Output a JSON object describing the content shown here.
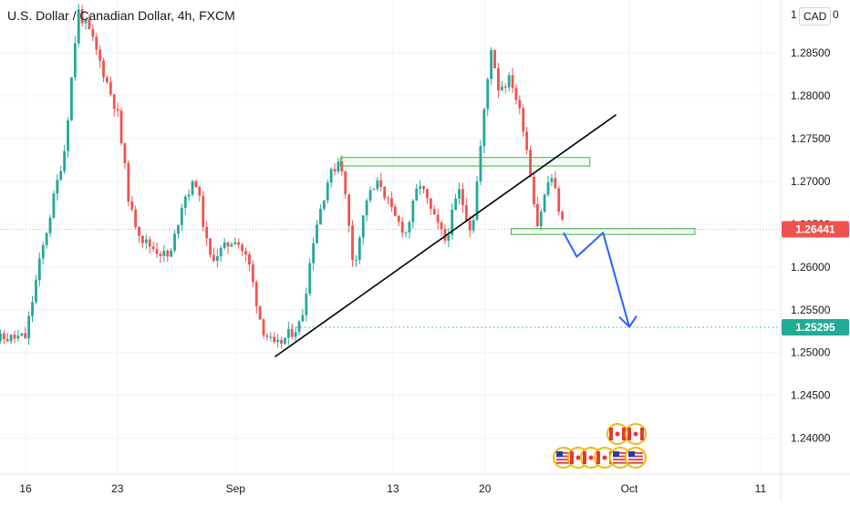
{
  "header": {
    "title": "U.S. Dollar / Canadian Dollar, 4h, FXCM",
    "currency": "CAD",
    "currency_suffix": "0",
    "top_tick_fragment": "1"
  },
  "colors": {
    "up": "#26a69a",
    "down": "#ef5350",
    "trendline": "#000000",
    "zone": "#4caf50",
    "projection": "#2962ff",
    "target_line": "#22ab94",
    "price_line": "#ef5350",
    "grid": "#f0f3fa",
    "axis_text": "#131722"
  },
  "chart_data": {
    "type": "candlestick",
    "symbol": "U.S. Dollar / Canadian Dollar",
    "interval": "4h",
    "source": "FXCM",
    "y_axis": {
      "ticks": [
        1.24,
        1.245,
        1.25,
        1.255,
        1.26,
        1.265,
        1.27,
        1.275,
        1.28,
        1.285
      ],
      "tick_labels": [
        "1.24000",
        "1.24500",
        "1.25000",
        "1.25500",
        "1.26000",
        "1.26500",
        "1.27000",
        "1.27500",
        "1.28000",
        "1.28500"
      ],
      "range": [
        1.2358,
        1.2912
      ]
    },
    "x_axis": {
      "tick_labels": [
        "16",
        "23",
        "Sep",
        "13",
        "20",
        "Oct",
        "11"
      ],
      "tick_dates": [
        "2021-08-16",
        "2021-08-23",
        "2021-09-01",
        "2021-09-13",
        "2021-09-20",
        "2021-10-01",
        "2021-10-11"
      ]
    },
    "path": [
      [
        "2021-08-13",
        1.2515
      ],
      [
        "2021-08-16",
        1.2518
      ],
      [
        "2021-08-17",
        1.26
      ],
      [
        "2021-08-18",
        1.267
      ],
      [
        "2021-08-19",
        1.274
      ],
      [
        "2021-08-20",
        1.29
      ],
      [
        "2021-08-21",
        1.287
      ],
      [
        "2021-08-23",
        1.278
      ],
      [
        "2021-08-24",
        1.2665
      ],
      [
        "2021-08-25",
        1.263
      ],
      [
        "2021-08-27",
        1.261
      ],
      [
        "2021-08-28",
        1.268
      ],
      [
        "2021-08-29",
        1.27
      ],
      [
        "2021-08-30",
        1.261
      ],
      [
        "2021-08-31",
        1.262
      ],
      [
        "2021-09-01",
        1.2635
      ],
      [
        "2021-09-02",
        1.2605
      ],
      [
        "2021-09-03",
        1.253
      ],
      [
        "2021-09-04",
        1.2505
      ],
      [
        "2021-09-06",
        1.2535
      ],
      [
        "2021-09-07",
        1.264
      ],
      [
        "2021-09-08",
        1.27
      ],
      [
        "2021-09-09",
        1.273
      ],
      [
        "2021-09-10",
        1.26
      ],
      [
        "2021-09-11",
        1.268
      ],
      [
        "2021-09-12",
        1.27
      ],
      [
        "2021-09-13",
        1.266
      ],
      [
        "2021-09-14",
        1.264
      ],
      [
        "2021-09-15",
        1.27
      ],
      [
        "2021-09-16",
        1.266
      ],
      [
        "2021-09-17",
        1.263
      ],
      [
        "2021-09-18",
        1.269
      ],
      [
        "2021-09-19",
        1.264
      ],
      [
        "2021-09-20",
        1.279
      ],
      [
        "2021-09-20T12",
        1.286
      ],
      [
        "2021-09-21",
        1.281
      ],
      [
        "2021-09-22",
        1.282
      ],
      [
        "2021-09-23",
        1.276
      ],
      [
        "2021-09-24",
        1.265
      ],
      [
        "2021-09-25",
        1.271
      ],
      [
        "2021-09-26",
        1.2645
      ]
    ],
    "last_price": 1.26441,
    "last_price_label": "1.26441",
    "trendline": {
      "from": [
        "2021-09-04",
        1.2495
      ],
      "to": [
        "2021-09-30",
        1.2778
      ]
    },
    "resistance_zone": {
      "from_date": "2021-09-09",
      "to_date": "2021-09-28",
      "low": 1.2718,
      "high": 1.2728
    },
    "support_zone": {
      "from_date": "2021-09-22",
      "to_date": "2021-10-06",
      "low": 1.2638,
      "high": 1.2645
    },
    "projection": [
      [
        "2021-09-26",
        1.264
      ],
      [
        "2021-09-27",
        1.2612
      ],
      [
        "2021-09-29",
        1.264
      ],
      [
        "2021-10-01",
        1.253
      ]
    ],
    "target": {
      "price": 1.25295,
      "label": "1.25295"
    }
  }
}
